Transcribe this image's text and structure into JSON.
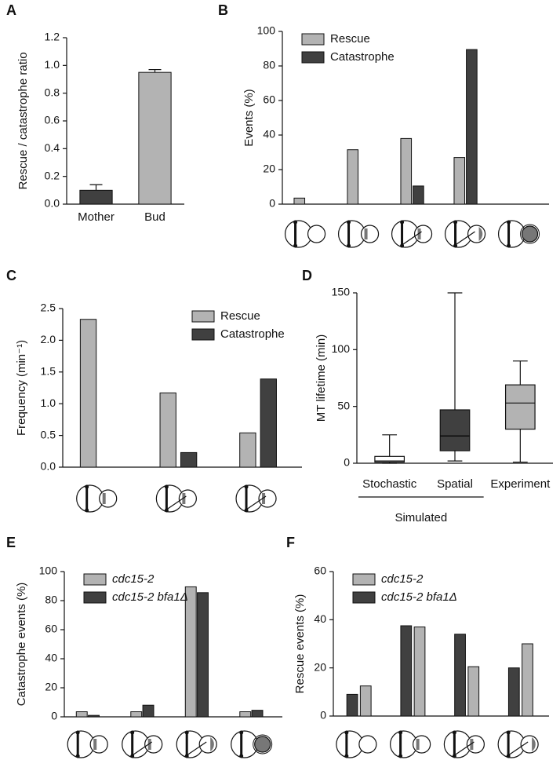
{
  "chart_data": [
    {
      "panel": "A",
      "type": "bar",
      "ylabel": "Rescue / catastrophe ratio",
      "categories": [
        "Mother",
        "Bud"
      ],
      "values": [
        0.1,
        0.95
      ],
      "errors": [
        0.04,
        0.02
      ],
      "colors": [
        "#404040",
        "#b3b3b3"
      ],
      "ylim": [
        0,
        1.2
      ],
      "yticks": [
        {
          "value": 0,
          "label": "0.0"
        },
        0.2,
        0.4,
        0.6,
        0.8,
        {
          "value": 1,
          "label": "1.0"
        },
        1.2
      ]
    },
    {
      "panel": "B",
      "type": "bar",
      "ylabel": "Events (%)",
      "categories": [
        null,
        null,
        null,
        null,
        null
      ],
      "series": [
        {
          "name": "Rescue",
          "color": "#b3b3b3",
          "values": [
            3.5,
            31.5,
            38,
            27,
            0
          ]
        },
        {
          "name": "Catastrophe",
          "color": "#404040",
          "values": [
            0,
            0,
            10.5,
            89.5,
            0
          ]
        }
      ],
      "ylim": [
        0,
        100
      ],
      "yticks": [
        0,
        20,
        40,
        60,
        80,
        100
      ],
      "legend": "upper left"
    },
    {
      "panel": "C",
      "type": "bar",
      "ylabel": "Frequency (min⁻¹)",
      "categories": [
        null,
        null,
        null
      ],
      "series": [
        {
          "name": "Rescue",
          "color": "#b3b3b3",
          "values": [
            2.33,
            1.17,
            0.54
          ]
        },
        {
          "name": "Catastrophe",
          "color": "#404040",
          "values": [
            0,
            0.23,
            1.39
          ]
        }
      ],
      "ylim": [
        0,
        2.5
      ],
      "yticks": [
        {
          "value": 0,
          "label": "0.0"
        },
        0.5,
        {
          "value": 1,
          "label": "1.0"
        },
        1.5,
        {
          "value": 2,
          "label": "2.0"
        },
        2.5
      ],
      "legend": "upper right"
    },
    {
      "panel": "D",
      "type": "box",
      "ylabel": "MT lifetime (min)",
      "categories": [
        "Stochastic",
        "Spatial",
        "Experiment"
      ],
      "boxes": [
        {
          "min": 0,
          "q1": 1,
          "median": 2,
          "q3": 6,
          "max": 25
        },
        {
          "min": 2,
          "q1": 11,
          "median": 24,
          "q3": 47,
          "max": 150
        },
        {
          "min": 1,
          "q1": 30,
          "median": 53,
          "q3": 69,
          "max": 90
        }
      ],
      "colors": [
        "#ffffff",
        "#404040",
        "#b3b3b3"
      ],
      "group_label": "Simulated",
      "group_categories": [
        0,
        1
      ],
      "ylim": [
        0,
        150
      ],
      "yticks": [
        0,
        50,
        100,
        150
      ]
    },
    {
      "panel": "E",
      "type": "bar",
      "ylabel": "Catastrophe events (%)",
      "categories": [
        null,
        null,
        null,
        null
      ],
      "series": [
        {
          "name": "cdc15-2",
          "color": "#b3b3b3",
          "values": [
            3.5,
            3.5,
            89.5,
            3.5
          ]
        },
        {
          "name": "cdc15-2 bfa1Δ",
          "color": "#404040",
          "values": [
            1,
            8,
            85.5,
            4.5
          ]
        }
      ],
      "ylim": [
        0,
        100
      ],
      "yticks": [
        0,
        20,
        40,
        60,
        80,
        100
      ],
      "legend": "upper left",
      "legend_italic": true
    },
    {
      "panel": "F",
      "type": "bar",
      "ylabel": "Rescue events (%)",
      "categories": [
        null,
        null,
        null,
        null
      ],
      "series": [
        {
          "name": "cdc15-2 bfa1Δ",
          "color": "#404040",
          "values": [
            9,
            37.5,
            34,
            20
          ]
        },
        {
          "name": "cdc15-2",
          "color": "#b3b3b3",
          "values": [
            12.5,
            37,
            20.5,
            30
          ]
        }
      ],
      "legend_order": [
        1,
        0
      ],
      "ylim": [
        0,
        60
      ],
      "yticks": [
        0,
        20,
        40,
        60
      ],
      "legend": "upper left",
      "legend_italic": true
    }
  ]
}
